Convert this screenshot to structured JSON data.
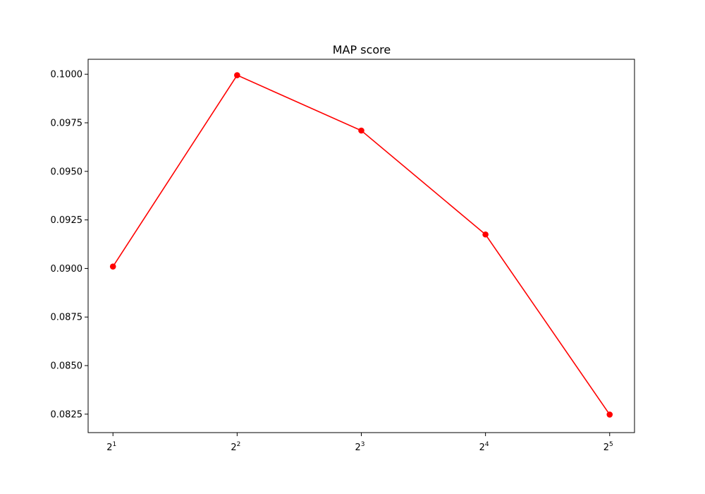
{
  "chart_data": {
    "type": "line",
    "title": "MAP score",
    "xlabel": "",
    "ylabel": "",
    "x_scale": "log2",
    "x": [
      2,
      4,
      8,
      16,
      32
    ],
    "x_tick_labels": [
      {
        "base": "2",
        "exp": "1"
      },
      {
        "base": "2",
        "exp": "2"
      },
      {
        "base": "2",
        "exp": "3"
      },
      {
        "base": "2",
        "exp": "4"
      },
      {
        "base": "2",
        "exp": "5"
      }
    ],
    "series": [
      {
        "values": [
          0.0901,
          0.09995,
          0.0971,
          0.09175,
          0.08248
        ]
      }
    ],
    "y_ticks": [
      "0.0825",
      "0.0850",
      "0.0875",
      "0.0900",
      "0.0925",
      "0.0950",
      "0.0975",
      "0.1000"
    ],
    "ylim": [
      0.08155,
      0.10077
    ],
    "grid": false,
    "line_color": "#ff0000",
    "marker": "circle"
  }
}
